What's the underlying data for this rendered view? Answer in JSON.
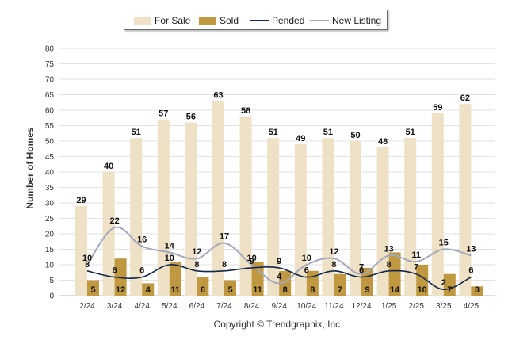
{
  "chart_data": {
    "type": "bar",
    "ylabel": "Number of Homes",
    "ylim": [
      0,
      80
    ],
    "yticks": [
      0,
      5,
      10,
      15,
      20,
      25,
      30,
      35,
      40,
      45,
      50,
      55,
      60,
      65,
      70,
      75,
      80
    ],
    "grid": true,
    "legend_position": "top-center",
    "copyright": "Copyright © Trendgraphix, Inc.",
    "categories": [
      "2/24",
      "3/24",
      "4/24",
      "5/24",
      "6/24",
      "7/24",
      "8/24",
      "9/24",
      "10/24",
      "11/24",
      "12/24",
      "1/25",
      "2/25",
      "3/25",
      "4/25"
    ],
    "series": [
      {
        "name": "For Sale",
        "type": "bar",
        "color": "#efe1c6",
        "values": [
          29,
          40,
          51,
          57,
          56,
          63,
          58,
          51,
          49,
          51,
          50,
          48,
          51,
          59,
          62
        ]
      },
      {
        "name": "Sold",
        "type": "bar",
        "color": "#bf9840",
        "values": [
          5,
          12,
          4,
          11,
          6,
          5,
          11,
          8,
          8,
          7,
          9,
          14,
          10,
          7,
          3
        ]
      },
      {
        "name": "Pended",
        "type": "line",
        "color": "#15274a",
        "values": [
          8,
          6,
          6,
          10,
          8,
          8,
          9,
          9,
          6,
          8,
          6,
          8,
          7,
          2,
          6
        ]
      },
      {
        "name": "New Listing",
        "type": "line",
        "color": "#a2a8bb",
        "values": [
          10,
          22,
          16,
          14,
          12,
          17,
          10,
          4,
          10,
          12,
          7,
          13,
          11,
          15,
          13
        ]
      }
    ]
  }
}
